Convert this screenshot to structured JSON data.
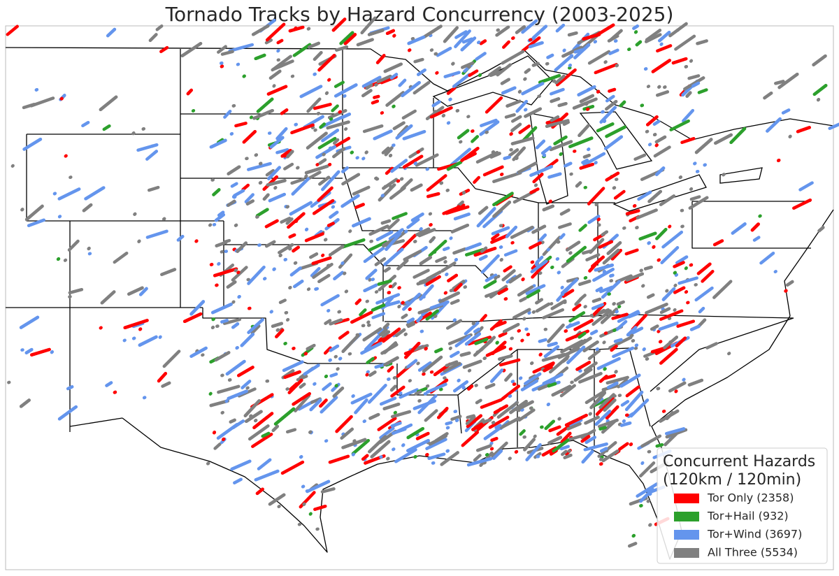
{
  "title": "Tornado Tracks by Hazard Concurrency (2003-2025)",
  "legend": {
    "title_lines": [
      "Concurrent Hazards",
      "(120km / 120min)"
    ],
    "entries": [
      {
        "label": "Tor Only (2358)",
        "color": "#ff0000"
      },
      {
        "label": "Tor+Hail (932)",
        "color": "#2ca02c"
      },
      {
        "label": "Tor+Wind (3697)",
        "color": "#6495ed"
      },
      {
        "label": "All Three (5534)",
        "color": "#808080"
      }
    ]
  }
}
